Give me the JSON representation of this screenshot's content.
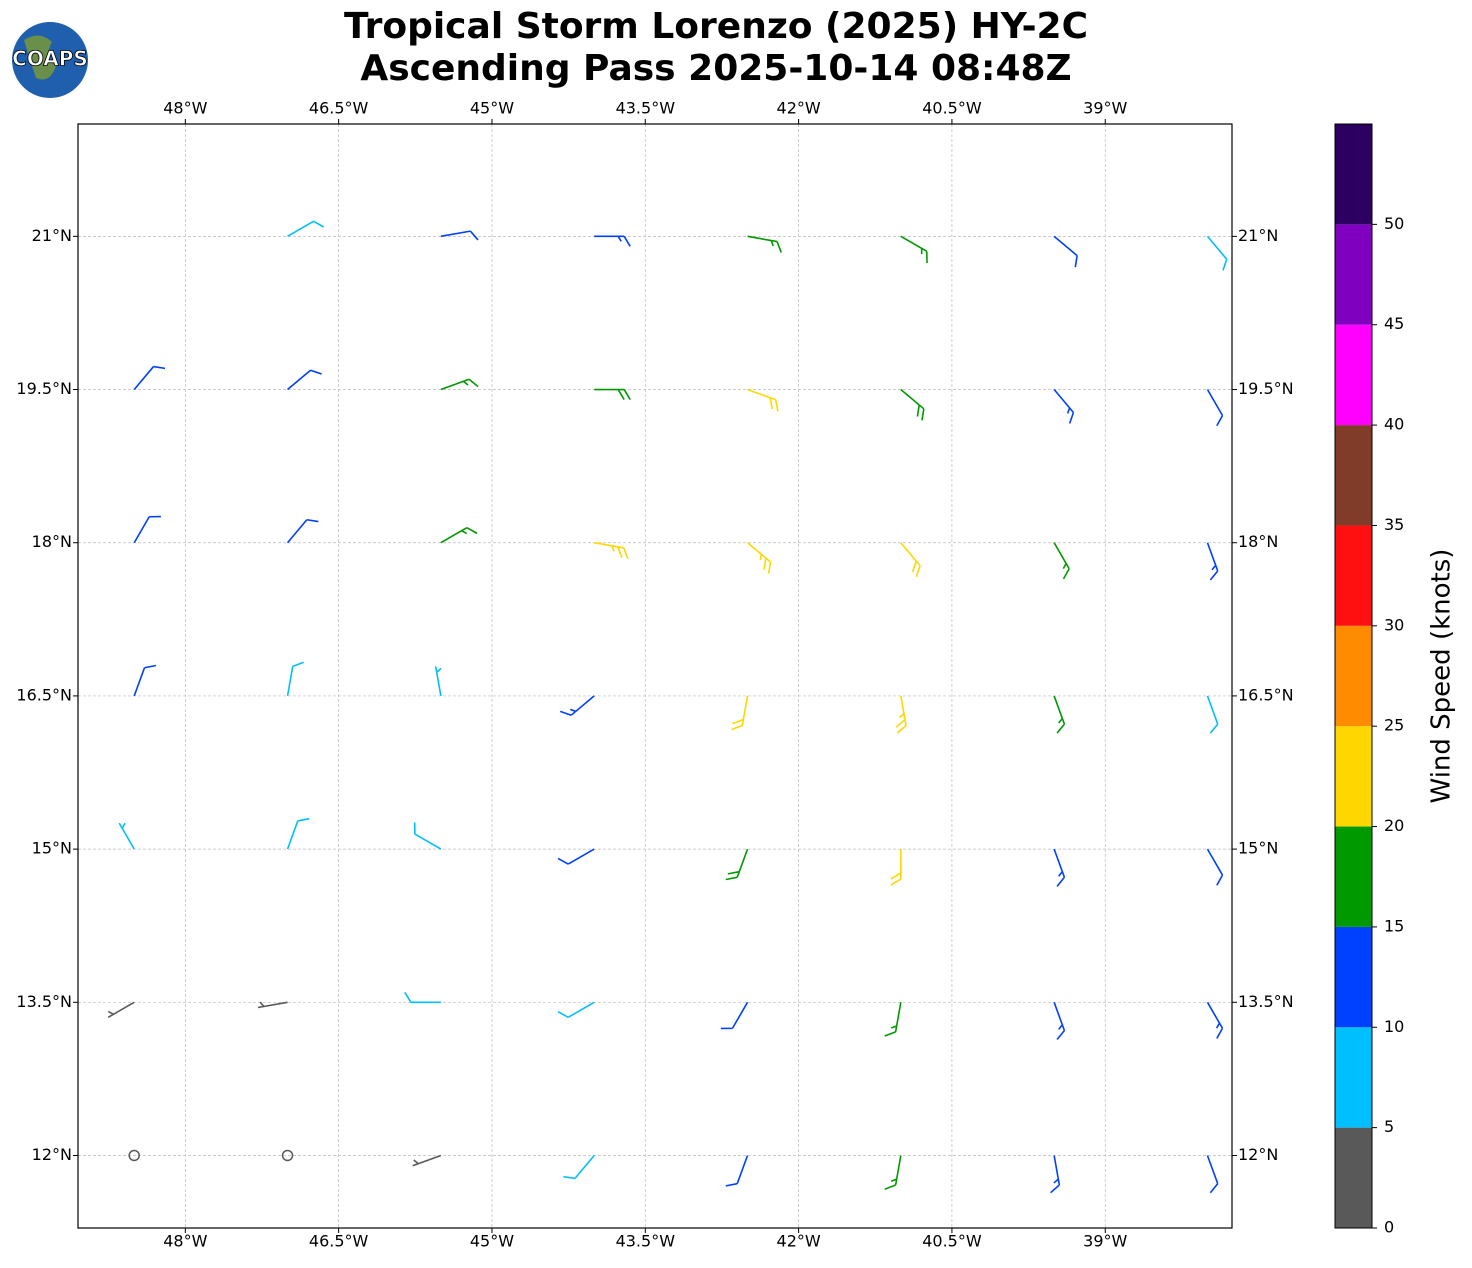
{
  "chart_data": {
    "type": "wind-barb-map",
    "title": "Tropical Storm Lorenzo (2025) HY-2C",
    "subtitle": "Ascending Pass 2025-10-14 08:48Z",
    "logo_text": "COAPS",
    "xlim": [
      -49.05,
      -37.76
    ],
    "ylim": [
      11.29,
      22.1
    ],
    "xticks": [
      {
        "value": -48,
        "label": "48°W"
      },
      {
        "value": -46.5,
        "label": "46.5°W"
      },
      {
        "value": -45,
        "label": "45°W"
      },
      {
        "value": -43.5,
        "label": "43.5°W"
      },
      {
        "value": -42,
        "label": "42°W"
      },
      {
        "value": -40.5,
        "label": "40.5°W"
      },
      {
        "value": -39,
        "label": "39°W"
      }
    ],
    "yticks": [
      {
        "value": 12,
        "label": "12°N"
      },
      {
        "value": 13.5,
        "label": "13.5°N"
      },
      {
        "value": 15,
        "label": "15°N"
      },
      {
        "value": 16.5,
        "label": "16.5°N"
      },
      {
        "value": 18,
        "label": "18°N"
      },
      {
        "value": 19.5,
        "label": "19.5°N"
      },
      {
        "value": 21,
        "label": "21°N"
      }
    ],
    "grid": true,
    "colorbar": {
      "label": "Wind Speed (knots)",
      "clim": [
        0,
        55
      ],
      "ticks": [
        0,
        5,
        10,
        15,
        20,
        25,
        30,
        35,
        40,
        45,
        50
      ],
      "levels": [
        0,
        5,
        10,
        15,
        20,
        25,
        30,
        35,
        40,
        45,
        50,
        55
      ],
      "colors": [
        "#595959",
        "#00bfff",
        "#0040ff",
        "#009900",
        "#ffd700",
        "#ff8c00",
        "#ff1010",
        "#803c28",
        "#ff00ff",
        "#8000c0",
        "#2c0060"
      ]
    },
    "x": [
      -47,
      -45.5,
      -44,
      -42.5,
      -41,
      -39.5,
      -38,
      -48.5,
      -47,
      -45.5,
      -44,
      -42.5,
      -41,
      -39.5,
      -38,
      -48.5,
      -47,
      -45.5,
      -44,
      -42.5,
      -41,
      -39.5,
      -38,
      -48.5,
      -47,
      -45.5,
      -44,
      -42.5,
      -41,
      -39.5,
      -38,
      -48.5,
      -47,
      -45.5,
      -44,
      -42.5,
      -41,
      -39.5,
      -38,
      -48.5,
      -47,
      -45.5,
      -44,
      -42.5,
      -41,
      -39.5,
      -38,
      -48.5,
      -47,
      -45.5,
      -44,
      -42.5,
      -41,
      -39.5,
      -38
    ],
    "y": [
      21,
      21,
      21,
      21,
      21,
      21,
      21,
      19.5,
      19.5,
      19.5,
      19.5,
      19.5,
      19.5,
      19.5,
      19.5,
      18,
      18,
      18,
      18,
      18,
      18,
      18,
      18,
      16.5,
      16.5,
      16.5,
      16.5,
      16.5,
      16.5,
      16.5,
      16.5,
      15,
      15,
      15,
      15,
      15,
      15,
      15,
      15,
      13.5,
      13.5,
      13.5,
      13.5,
      13.5,
      13.5,
      13.5,
      13.5,
      12,
      12,
      12,
      12,
      12,
      12,
      12,
      12
    ],
    "speed": [
      8,
      12,
      14,
      17,
      16,
      12,
      9,
      12,
      12,
      16,
      19,
      22,
      18,
      14,
      12,
      12,
      12,
      17,
      23,
      23,
      21,
      17,
      13,
      11,
      9,
      7,
      13,
      22,
      23,
      17,
      9,
      7,
      8,
      8,
      12,
      18,
      22,
      14,
      12,
      3,
      4,
      9,
      9,
      12,
      17,
      14,
      13,
      2,
      2,
      4,
      8,
      12,
      16,
      13,
      10
    ],
    "direction": [
      60,
      80,
      90,
      100,
      120,
      130,
      140,
      40,
      50,
      70,
      90,
      110,
      130,
      140,
      150,
      30,
      40,
      60,
      100,
      130,
      140,
      150,
      160,
      20,
      10,
      350,
      230,
      190,
      170,
      160,
      160,
      330,
      20,
      300,
      240,
      200,
      180,
      160,
      150,
      240,
      260,
      270,
      240,
      210,
      190,
      160,
      150,
      0,
      0,
      250,
      220,
      200,
      190,
      170,
      160
    ]
  }
}
